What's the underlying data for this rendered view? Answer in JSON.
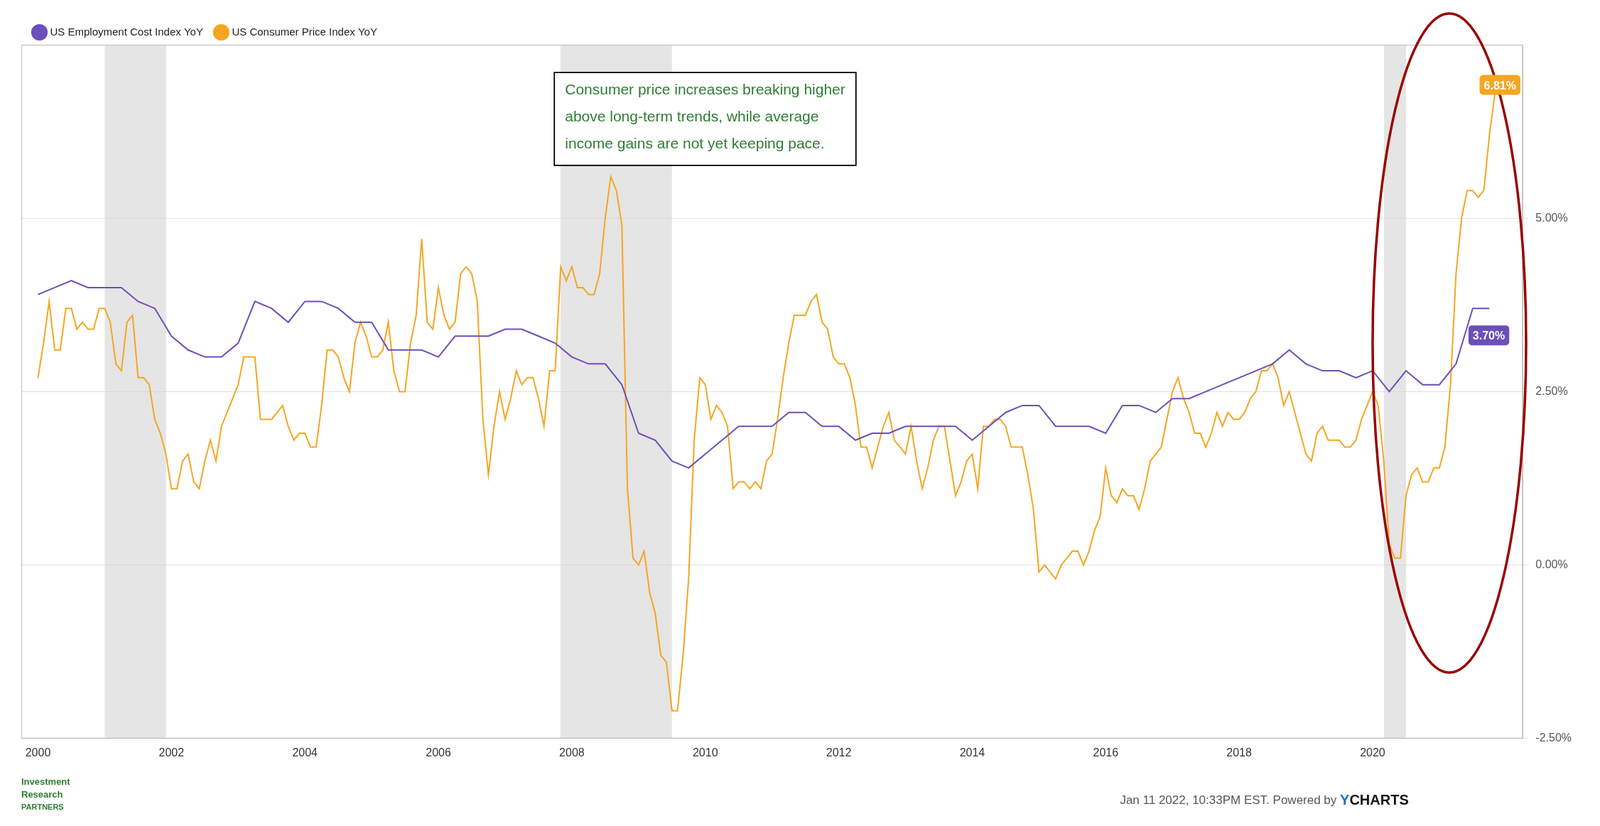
{
  "chart_data": {
    "type": "line",
    "series": [
      {
        "name": "US Employment Cost Index YoY",
        "color": "#6b4fbb",
        "x": [
          2000.0,
          2000.25,
          2000.5,
          2000.75,
          2001.0,
          2001.25,
          2001.5,
          2001.75,
          2002.0,
          2002.25,
          2002.5,
          2002.75,
          2003.0,
          2003.25,
          2003.5,
          2003.75,
          2004.0,
          2004.25,
          2004.5,
          2004.75,
          2005.0,
          2005.25,
          2005.5,
          2005.75,
          2006.0,
          2006.25,
          2006.5,
          2006.75,
          2007.0,
          2007.25,
          2007.5,
          2007.75,
          2008.0,
          2008.25,
          2008.5,
          2008.75,
          2009.0,
          2009.25,
          2009.5,
          2009.75,
          2010.0,
          2010.25,
          2010.5,
          2010.75,
          2011.0,
          2011.25,
          2011.5,
          2011.75,
          2012.0,
          2012.25,
          2012.5,
          2012.75,
          2013.0,
          2013.25,
          2013.5,
          2013.75,
          2014.0,
          2014.25,
          2014.5,
          2014.75,
          2015.0,
          2015.25,
          2015.5,
          2015.75,
          2016.0,
          2016.25,
          2016.5,
          2016.75,
          2017.0,
          2017.25,
          2017.5,
          2017.75,
          2018.0,
          2018.25,
          2018.5,
          2018.75,
          2019.0,
          2019.25,
          2019.5,
          2019.75,
          2020.0,
          2020.25,
          2020.5,
          2020.75,
          2021.0,
          2021.25,
          2021.5,
          2021.75
        ],
        "values": [
          3.9,
          4.0,
          4.1,
          4.0,
          4.0,
          4.0,
          3.8,
          3.7,
          3.3,
          3.1,
          3.0,
          3.0,
          3.2,
          3.8,
          3.7,
          3.5,
          3.8,
          3.8,
          3.7,
          3.5,
          3.5,
          3.1,
          3.1,
          3.1,
          3.0,
          3.3,
          3.3,
          3.3,
          3.4,
          3.4,
          3.3,
          3.2,
          3.0,
          2.9,
          2.9,
          2.6,
          1.9,
          1.8,
          1.5,
          1.4,
          1.6,
          1.8,
          2.0,
          2.0,
          2.0,
          2.2,
          2.2,
          2.0,
          2.0,
          1.8,
          1.9,
          1.9,
          2.0,
          2.0,
          2.0,
          2.0,
          1.8,
          2.0,
          2.2,
          2.3,
          2.3,
          2.0,
          2.0,
          2.0,
          1.9,
          2.3,
          2.3,
          2.2,
          2.4,
          2.4,
          2.5,
          2.6,
          2.7,
          2.8,
          2.9,
          3.1,
          2.9,
          2.8,
          2.8,
          2.7,
          2.8,
          2.5,
          2.8,
          2.6,
          2.6,
          2.9,
          3.7,
          3.7
        ],
        "value_labels": [
          null,
          null,
          null,
          null,
          null,
          null,
          null,
          null,
          null,
          null,
          null,
          null,
          null,
          null,
          null,
          null,
          null,
          null,
          null,
          null,
          null,
          null,
          null,
          null,
          null,
          null,
          null,
          null,
          null,
          null,
          null,
          null,
          null,
          null,
          null,
          null,
          null,
          null,
          null,
          null,
          null,
          null,
          null,
          null,
          null,
          null,
          null,
          null,
          null,
          null,
          null,
          null,
          null,
          null,
          null,
          null,
          null,
          null,
          null,
          null,
          null,
          null,
          null,
          null,
          null,
          null,
          null,
          null,
          null,
          null,
          null,
          null,
          null,
          null,
          null,
          null,
          null,
          null,
          null,
          null,
          null,
          null,
          null,
          null,
          null,
          null,
          null,
          "3.70%"
        ]
      },
      {
        "name": "US Consumer Price Index YoY",
        "color": "#f5a623",
        "x": [
          2000.0,
          2000.083,
          2000.167,
          2000.25,
          2000.333,
          2000.417,
          2000.5,
          2000.583,
          2000.667,
          2000.75,
          2000.833,
          2000.917,
          2001.0,
          2001.083,
          2001.167,
          2001.25,
          2001.333,
          2001.417,
          2001.5,
          2001.583,
          2001.667,
          2001.75,
          2001.833,
          2001.917,
          2002.0,
          2002.083,
          2002.167,
          2002.25,
          2002.333,
          2002.417,
          2002.5,
          2002.583,
          2002.667,
          2002.75,
          2002.833,
          2002.917,
          2003.0,
          2003.083,
          2003.167,
          2003.25,
          2003.333,
          2003.417,
          2003.5,
          2003.583,
          2003.667,
          2003.75,
          2003.833,
          2003.917,
          2004.0,
          2004.083,
          2004.167,
          2004.25,
          2004.333,
          2004.417,
          2004.5,
          2004.583,
          2004.667,
          2004.75,
          2004.833,
          2004.917,
          2005.0,
          2005.083,
          2005.167,
          2005.25,
          2005.333,
          2005.417,
          2005.5,
          2005.583,
          2005.667,
          2005.75,
          2005.833,
          2005.917,
          2006.0,
          2006.083,
          2006.167,
          2006.25,
          2006.333,
          2006.417,
          2006.5,
          2006.583,
          2006.667,
          2006.75,
          2006.833,
          2006.917,
          2007.0,
          2007.083,
          2007.167,
          2007.25,
          2007.333,
          2007.417,
          2007.5,
          2007.583,
          2007.667,
          2007.75,
          2007.833,
          2007.917,
          2008.0,
          2008.083,
          2008.167,
          2008.25,
          2008.333,
          2008.417,
          2008.5,
          2008.583,
          2008.667,
          2008.75,
          2008.833,
          2008.917,
          2009.0,
          2009.083,
          2009.167,
          2009.25,
          2009.333,
          2009.417,
          2009.5,
          2009.583,
          2009.667,
          2009.75,
          2009.833,
          2009.917,
          2010.0,
          2010.083,
          2010.167,
          2010.25,
          2010.333,
          2010.417,
          2010.5,
          2010.583,
          2010.667,
          2010.75,
          2010.833,
          2010.917,
          2011.0,
          2011.083,
          2011.167,
          2011.25,
          2011.333,
          2011.417,
          2011.5,
          2011.583,
          2011.667,
          2011.75,
          2011.833,
          2011.917,
          2012.0,
          2012.083,
          2012.167,
          2012.25,
          2012.333,
          2012.417,
          2012.5,
          2012.583,
          2012.667,
          2012.75,
          2012.833,
          2012.917,
          2013.0,
          2013.083,
          2013.167,
          2013.25,
          2013.333,
          2013.417,
          2013.5,
          2013.583,
          2013.667,
          2013.75,
          2013.833,
          2013.917,
          2014.0,
          2014.083,
          2014.167,
          2014.25,
          2014.333,
          2014.417,
          2014.5,
          2014.583,
          2014.667,
          2014.75,
          2014.833,
          2014.917,
          2015.0,
          2015.083,
          2015.167,
          2015.25,
          2015.333,
          2015.417,
          2015.5,
          2015.583,
          2015.667,
          2015.75,
          2015.833,
          2015.917,
          2016.0,
          2016.083,
          2016.167,
          2016.25,
          2016.333,
          2016.417,
          2016.5,
          2016.583,
          2016.667,
          2016.75,
          2016.833,
          2016.917,
          2017.0,
          2017.083,
          2017.167,
          2017.25,
          2017.333,
          2017.417,
          2017.5,
          2017.583,
          2017.667,
          2017.75,
          2017.833,
          2017.917,
          2018.0,
          2018.083,
          2018.167,
          2018.25,
          2018.333,
          2018.417,
          2018.5,
          2018.583,
          2018.667,
          2018.75,
          2018.833,
          2018.917,
          2019.0,
          2019.083,
          2019.167,
          2019.25,
          2019.333,
          2019.417,
          2019.5,
          2019.583,
          2019.667,
          2019.75,
          2019.833,
          2019.917,
          2020.0,
          2020.083,
          2020.167,
          2020.25,
          2020.333,
          2020.417,
          2020.5,
          2020.583,
          2020.667,
          2020.75,
          2020.833,
          2020.917,
          2021.0,
          2021.083,
          2021.167,
          2021.25,
          2021.333,
          2021.417,
          2021.5,
          2021.583,
          2021.667,
          2021.75,
          2021.833,
          2021.917
        ],
        "values": [
          2.7,
          3.2,
          3.8,
          3.1,
          3.1,
          3.7,
          3.7,
          3.4,
          3.5,
          3.4,
          3.4,
          3.7,
          3.7,
          3.5,
          2.9,
          2.8,
          3.5,
          3.6,
          2.7,
          2.7,
          2.6,
          2.1,
          1.9,
          1.6,
          1.1,
          1.1,
          1.5,
          1.6,
          1.2,
          1.1,
          1.5,
          1.8,
          1.5,
          2.0,
          2.2,
          2.4,
          2.6,
          3.0,
          3.0,
          3.0,
          2.1,
          2.1,
          2.1,
          2.2,
          2.3,
          2.0,
          1.8,
          1.9,
          1.9,
          1.7,
          1.7,
          2.3,
          3.1,
          3.1,
          3.0,
          2.7,
          2.5,
          3.2,
          3.5,
          3.3,
          3.0,
          3.0,
          3.1,
          3.5,
          2.8,
          2.5,
          2.5,
          3.2,
          3.6,
          4.7,
          3.5,
          3.4,
          4.0,
          3.6,
          3.4,
          3.5,
          4.2,
          4.3,
          4.2,
          3.8,
          2.1,
          1.3,
          2.0,
          2.5,
          2.1,
          2.4,
          2.8,
          2.6,
          2.7,
          2.7,
          2.4,
          2.0,
          2.8,
          2.8,
          4.3,
          4.1,
          4.3,
          4.0,
          4.0,
          3.9,
          3.9,
          4.2,
          5.0,
          5.6,
          5.4,
          4.9,
          1.1,
          0.1,
          0.0,
          0.2,
          -0.4,
          -0.7,
          -1.3,
          -1.4,
          -2.1,
          -2.1,
          -1.3,
          -0.2,
          1.8,
          2.7,
          2.6,
          2.1,
          2.3,
          2.2,
          2.0,
          1.1,
          1.2,
          1.2,
          1.1,
          1.2,
          1.1,
          1.5,
          1.6,
          2.1,
          2.7,
          3.2,
          3.6,
          3.6,
          3.6,
          3.8,
          3.9,
          3.5,
          3.4,
          3.0,
          2.9,
          2.9,
          2.7,
          2.3,
          1.7,
          1.7,
          1.4,
          1.7,
          2.0,
          2.2,
          1.8,
          1.7,
          1.6,
          2.0,
          1.5,
          1.1,
          1.4,
          1.8,
          2.0,
          2.0,
          1.5,
          1.0,
          1.2,
          1.5,
          1.6,
          1.1,
          2.0,
          2.0,
          2.1,
          2.1,
          2.0,
          1.7,
          1.7,
          1.7,
          1.3,
          0.8,
          -0.1,
          0.0,
          -0.1,
          -0.2,
          0.0,
          0.1,
          0.2,
          0.2,
          0.0,
          0.2,
          0.5,
          0.7,
          1.4,
          1.0,
          0.9,
          1.1,
          1.0,
          1.0,
          0.8,
          1.1,
          1.5,
          1.6,
          1.7,
          2.1,
          2.5,
          2.7,
          2.4,
          2.2,
          1.9,
          1.9,
          1.7,
          1.9,
          2.2,
          2.0,
          2.2,
          2.1,
          2.1,
          2.2,
          2.4,
          2.5,
          2.8,
          2.8,
          2.9,
          2.7,
          2.3,
          2.5,
          2.2,
          1.9,
          1.6,
          1.5,
          1.9,
          2.0,
          1.8,
          1.8,
          1.8,
          1.7,
          1.7,
          1.8,
          2.1,
          2.3,
          2.5,
          2.3,
          1.5,
          0.3,
          0.1,
          0.1,
          1.0,
          1.3,
          1.4,
          1.2,
          1.2,
          1.4,
          1.4,
          1.7,
          2.6,
          4.2,
          5.0,
          5.4,
          5.4,
          5.3,
          5.4,
          6.2,
          6.8,
          6.81
        ],
        "value_labels": [
          null,
          null,
          null,
          null,
          null,
          null,
          null,
          null,
          null,
          null,
          null,
          null,
          null,
          null,
          null,
          null,
          null,
          null,
          null,
          null,
          null,
          null,
          null,
          null,
          null,
          null,
          null,
          null,
          null,
          null,
          null,
          null,
          null,
          null,
          null,
          null,
          null,
          null,
          null,
          null,
          null,
          null,
          null,
          null,
          null,
          null,
          null,
          null,
          null,
          null,
          null,
          null,
          null,
          null,
          null,
          null,
          null,
          null,
          null,
          null,
          null,
          null,
          null,
          null,
          null,
          null,
          null,
          null,
          null,
          null,
          null,
          null,
          null,
          null,
          null,
          null,
          null,
          null,
          null,
          null,
          null,
          null,
          null,
          null,
          null,
          null,
          null,
          null,
          null,
          null,
          null,
          null,
          null,
          null,
          null,
          null,
          null,
          null,
          null,
          null,
          null,
          null,
          null,
          null,
          null,
          null,
          null,
          null,
          null,
          null,
          null,
          null,
          null,
          null,
          null,
          null,
          null,
          null,
          null,
          null,
          null,
          null,
          null,
          null,
          null,
          null,
          null,
          null,
          null,
          null,
          null,
          null,
          null,
          null,
          null,
          null,
          null,
          null,
          null,
          null,
          null,
          null,
          null,
          null,
          null,
          null,
          null,
          null,
          null,
          null,
          null,
          null,
          null,
          null,
          null,
          null,
          null,
          null,
          null,
          null,
          null,
          null,
          null,
          null,
          null,
          null,
          null,
          null,
          null,
          null,
          null,
          null,
          null,
          null,
          null,
          null,
          null,
          null,
          null,
          null,
          null,
          null,
          null,
          null,
          null,
          null,
          null,
          null,
          null,
          null,
          null,
          null,
          null,
          null,
          null,
          null,
          null,
          null,
          null,
          null,
          null,
          null,
          null,
          null,
          null,
          null,
          null,
          null,
          null,
          null,
          null,
          null,
          null,
          null,
          null,
          null,
          null,
          null,
          null,
          null,
          null,
          null,
          null,
          null,
          null,
          null,
          null,
          null,
          null,
          null,
          null,
          null,
          null,
          null,
          null,
          null,
          null,
          null,
          null,
          null,
          null,
          null,
          null,
          null,
          null,
          null,
          null,
          null,
          null,
          null,
          null,
          null,
          null,
          null,
          null,
          null,
          null,
          null,
          null,
          null,
          null,
          null,
          null,
          "6.81%"
        ]
      }
    ],
    "xlim": [
      1999.75,
      2022.25
    ],
    "xticks": [
      2000,
      2002,
      2004,
      2006,
      2008,
      2010,
      2012,
      2014,
      2016,
      2018,
      2020
    ],
    "ylim": [
      -2.5,
      7.5
    ],
    "yticks": [
      {
        "value": -2.5,
        "label": "-2.50%"
      },
      {
        "value": 0.0,
        "label": "0.00%"
      },
      {
        "value": 2.5,
        "label": "2.50%"
      },
      {
        "value": 5.0,
        "label": "5.00%"
      }
    ],
    "grid": "y",
    "legend": "upper left",
    "annotations": [
      {
        "text": "Consumer price increases breaking higher\nabove long-term trends, while average\nincome gains are not yet keeping pace.",
        "color": "#2e7d32"
      }
    ],
    "recessions": {
      "color": "#d3d3d3",
      "spans": [
        [
          2001.0,
          2001.92
        ],
        [
          2007.83,
          2009.5
        ],
        [
          2020.17,
          2020.5
        ]
      ]
    },
    "highlight": {
      "x": 2021.15,
      "y": 3.2,
      "width": 2.3,
      "height": 9.5,
      "color": "#990000"
    },
    "footer": {
      "left": [
        {
          "text": "Investment",
          "color": "#2e7d32"
        },
        {
          "text": "Research",
          "color": "#2e7d32"
        },
        {
          "text": "PARTNERS",
          "color": "#2e7d32"
        }
      ],
      "right": [
        {
          "text": "Jan 11 2022, 10:33PM EST. Powered by ",
          "color": "#555555"
        },
        {
          "text": "Y",
          "color": "#1a6ecc"
        },
        {
          "text": "CHARTS",
          "color": "#111111"
        }
      ]
    }
  }
}
